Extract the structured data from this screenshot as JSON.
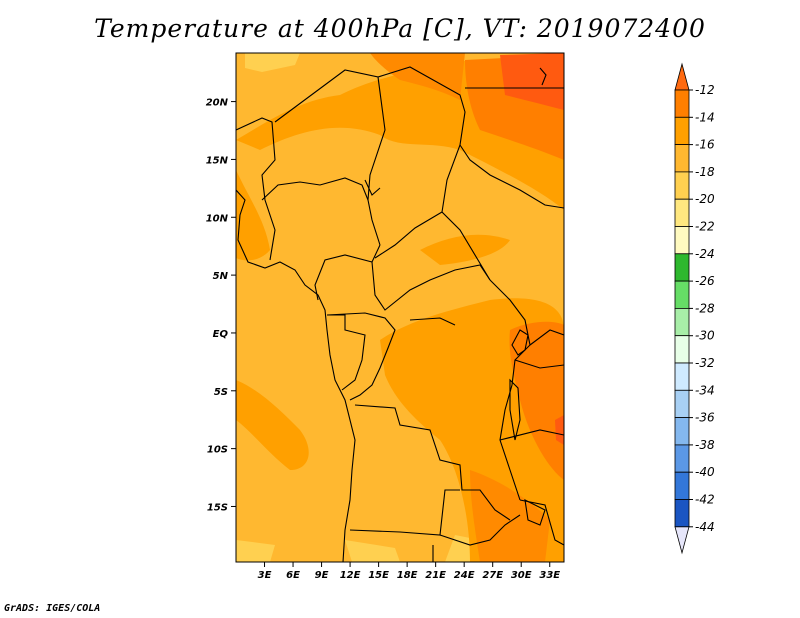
{
  "title": "Temperature at 400hPa [C], VT: 2019072400",
  "credit": "GrADS: IGES/COLA",
  "chart_data": {
    "type": "heatmap",
    "title": "Temperature at 400hPa [C], VT: 2019072400",
    "x_ticks": [
      "3E",
      "6E",
      "9E",
      "12E",
      "15E",
      "18E",
      "21E",
      "24E",
      "27E",
      "30E",
      "33E"
    ],
    "y_ticks": [
      "20N",
      "15N",
      "10N",
      "5N",
      "EQ",
      "5S",
      "10S",
      "15S"
    ],
    "x_range_deg": [
      0,
      34.5
    ],
    "y_range_deg": [
      -19.8,
      24.2
    ],
    "colorbar_levels": [
      "-12",
      "-14",
      "-16",
      "-18",
      "-20",
      "-22",
      "-24",
      "-26",
      "-28",
      "-30",
      "-32",
      "-34",
      "-36",
      "-38",
      "-40",
      "-42",
      "-44"
    ],
    "colorbar_colors": [
      "#ff6a10",
      "#ff7f00",
      "#ffa000",
      "#ffb830",
      "#ffd050",
      "#ffe880",
      "#fffac0",
      "#2eb82e",
      "#66dd66",
      "#a8eea8",
      "#e8ffe8",
      "#cfeaff",
      "#a8d0f4",
      "#84b8ef",
      "#5b98e6",
      "#3377d9",
      "#1a55c2",
      "#0a2a90"
    ],
    "dominant_value_range": [
      -18,
      -12
    ]
  },
  "colors": {
    "warm_base": "#ffb830",
    "warm_mid": "#ffa000",
    "warm_hot": "#ff7f00",
    "warm_max": "#ff5a10",
    "light": "#ffd050"
  }
}
